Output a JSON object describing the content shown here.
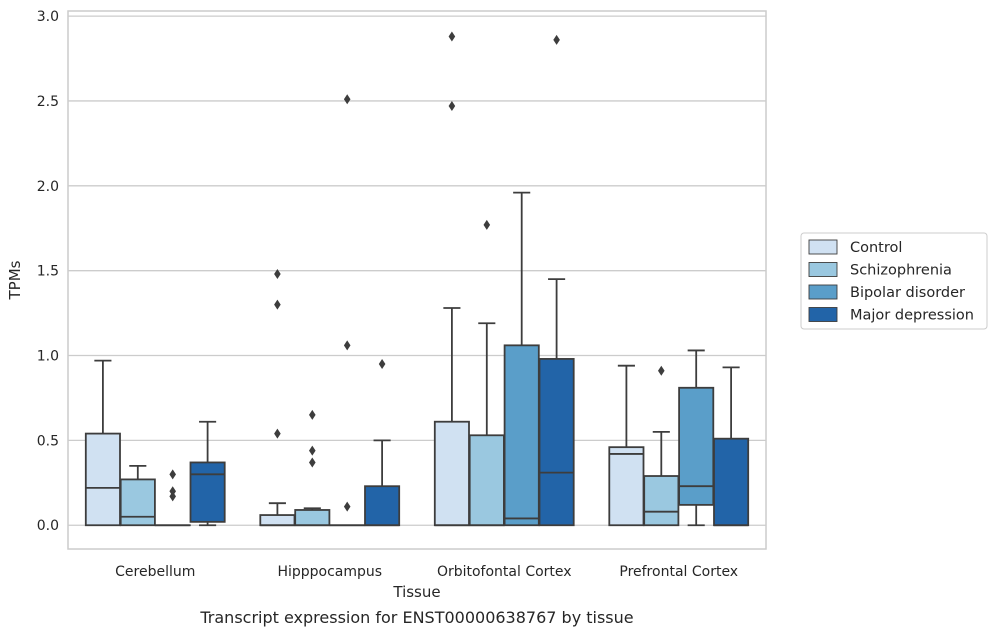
{
  "chart_data": {
    "type": "box",
    "title": "",
    "caption": "Transcript expression for ENST00000638767 by tissue",
    "xlabel": "Tissue",
    "ylabel": "TPMs",
    "ylim": [
      -0.14,
      3.03
    ],
    "yticks": [
      0.0,
      0.5,
      1.0,
      1.5,
      2.0,
      2.5,
      3.0
    ],
    "ytick_labels": [
      "0.0",
      "0.5",
      "1.0",
      "1.5",
      "2.0",
      "2.5",
      "3.0"
    ],
    "grid": "horizontal",
    "legend_position": "right",
    "categories": [
      "Cerebellum",
      "Hipppocampus",
      "Orbitofontal Cortex",
      "Prefrontal Cortex"
    ],
    "series": [
      {
        "name": "Control",
        "color": "#d0e1f2",
        "boxes": [
          {
            "q1": 0.0,
            "median": 0.22,
            "q3": 0.54,
            "whisker_low": 0.0,
            "whisker_high": 0.97,
            "outliers": []
          },
          {
            "q1": 0.0,
            "median": 0.0,
            "q3": 0.06,
            "whisker_low": 0.0,
            "whisker_high": 0.13,
            "outliers": [
              0.54,
              1.3,
              1.48
            ]
          },
          {
            "q1": 0.0,
            "median": 0.0,
            "q3": 0.61,
            "whisker_low": 0.0,
            "whisker_high": 1.28,
            "outliers": [
              2.47,
              2.88
            ]
          },
          {
            "q1": 0.0,
            "median": 0.42,
            "q3": 0.46,
            "whisker_low": 0.0,
            "whisker_high": 0.94,
            "outliers": []
          }
        ]
      },
      {
        "name": "Schizophrenia",
        "color": "#9ac8e0",
        "boxes": [
          {
            "q1": 0.0,
            "median": 0.05,
            "q3": 0.27,
            "whisker_low": 0.0,
            "whisker_high": 0.35,
            "outliers": []
          },
          {
            "q1": 0.0,
            "median": 0.0,
            "q3": 0.09,
            "whisker_low": 0.0,
            "whisker_high": 0.1,
            "outliers": [
              0.37,
              0.44,
              0.65
            ]
          },
          {
            "q1": 0.0,
            "median": 0.0,
            "q3": 0.53,
            "whisker_low": 0.0,
            "whisker_high": 1.19,
            "outliers": [
              1.77
            ]
          },
          {
            "q1": 0.0,
            "median": 0.08,
            "q3": 0.29,
            "whisker_low": 0.0,
            "whisker_high": 0.55,
            "outliers": [
              0.91
            ]
          }
        ]
      },
      {
        "name": "Bipolar disorder",
        "color": "#5a9ec9",
        "boxes": [
          {
            "q1": 0.0,
            "median": 0.0,
            "q3": 0.0,
            "whisker_low": 0.0,
            "whisker_high": 0.0,
            "outliers": [
              0.17,
              0.2,
              0.3
            ]
          },
          {
            "q1": 0.0,
            "median": 0.0,
            "q3": 0.0,
            "whisker_low": 0.0,
            "whisker_high": 0.0,
            "outliers": [
              0.11,
              1.06,
              2.51
            ]
          },
          {
            "q1": 0.0,
            "median": 0.04,
            "q3": 1.06,
            "whisker_low": 0.0,
            "whisker_high": 1.96,
            "outliers": []
          },
          {
            "q1": 0.12,
            "median": 0.23,
            "q3": 0.81,
            "whisker_low": 0.0,
            "whisker_high": 1.03,
            "outliers": []
          }
        ]
      },
      {
        "name": "Major depression",
        "color": "#2264a8",
        "boxes": [
          {
            "q1": 0.02,
            "median": 0.3,
            "q3": 0.37,
            "whisker_low": 0.0,
            "whisker_high": 0.61,
            "outliers": []
          },
          {
            "q1": 0.0,
            "median": 0.0,
            "q3": 0.23,
            "whisker_low": 0.0,
            "whisker_high": 0.5,
            "outliers": [
              0.95
            ]
          },
          {
            "q1": 0.0,
            "median": 0.31,
            "q3": 0.98,
            "whisker_low": 0.0,
            "whisker_high": 1.45,
            "outliers": [
              2.86
            ]
          },
          {
            "q1": 0.0,
            "median": 0.0,
            "q3": 0.51,
            "whisker_low": 0.0,
            "whisker_high": 0.93,
            "outliers": []
          }
        ]
      }
    ]
  }
}
